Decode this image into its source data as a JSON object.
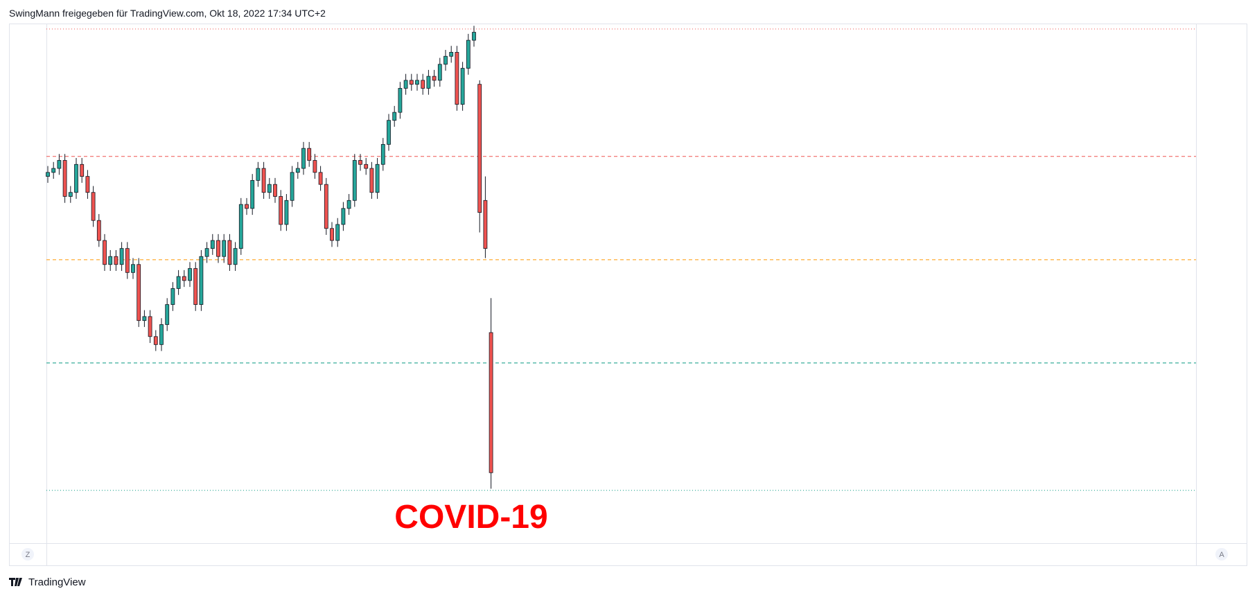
{
  "header": "SwingMann freigegeben für TradingView.com, Okt 18, 2022 17:34 UTC+2",
  "chart_data": {
    "type": "candlestick",
    "annotation": "COVID-19",
    "up_color": "#26a69a",
    "down_color": "#ef5350",
    "ylim": [
      22,
      670
    ],
    "open": [
      480,
      485,
      490,
      500,
      455,
      460,
      495,
      480,
      460,
      425,
      400,
      370,
      380,
      370,
      390,
      360,
      370,
      300,
      305,
      280,
      270,
      295,
      320,
      340,
      355,
      350,
      365,
      320,
      380,
      390,
      400,
      380,
      400,
      370,
      390,
      445,
      440,
      475,
      490,
      460,
      470,
      455,
      420,
      450,
      485,
      490,
      515,
      500,
      485,
      470,
      415,
      400,
      420,
      440,
      450,
      500,
      495,
      490,
      460,
      495,
      520,
      550,
      560,
      590,
      600,
      595,
      600,
      590,
      605,
      600,
      620,
      630,
      635,
      570,
      615,
      650,
      595,
      450,
      285
    ],
    "high": [
      493,
      498,
      508,
      508,
      468,
      503,
      503,
      488,
      468,
      433,
      408,
      388,
      388,
      398,
      398,
      378,
      378,
      313,
      313,
      288,
      303,
      328,
      348,
      363,
      363,
      373,
      373,
      388,
      398,
      408,
      408,
      408,
      408,
      398,
      453,
      453,
      483,
      498,
      498,
      478,
      478,
      463,
      458,
      493,
      498,
      523,
      523,
      508,
      493,
      478,
      423,
      428,
      448,
      458,
      508,
      508,
      503,
      498,
      503,
      528,
      558,
      568,
      598,
      608,
      608,
      608,
      608,
      613,
      613,
      628,
      638,
      643,
      643,
      623,
      658,
      668,
      600,
      480,
      328
    ],
    "low": [
      472,
      477,
      482,
      447,
      447,
      452,
      472,
      452,
      417,
      392,
      362,
      362,
      362,
      362,
      352,
      352,
      292,
      292,
      272,
      262,
      262,
      287,
      312,
      332,
      342,
      342,
      312,
      312,
      372,
      382,
      372,
      372,
      362,
      362,
      382,
      432,
      432,
      467,
      452,
      452,
      447,
      412,
      412,
      442,
      477,
      482,
      492,
      477,
      462,
      407,
      392,
      392,
      412,
      432,
      442,
      487,
      482,
      452,
      452,
      487,
      512,
      542,
      552,
      582,
      587,
      587,
      582,
      582,
      592,
      592,
      612,
      622,
      562,
      562,
      607,
      642,
      410,
      378,
      90
    ],
    "close": [
      485,
      490,
      500,
      455,
      460,
      495,
      480,
      460,
      425,
      400,
      370,
      380,
      370,
      390,
      360,
      370,
      300,
      305,
      280,
      270,
      295,
      320,
      340,
      355,
      350,
      365,
      320,
      380,
      390,
      400,
      380,
      400,
      370,
      390,
      445,
      440,
      475,
      490,
      460,
      470,
      455,
      420,
      450,
      485,
      490,
      515,
      500,
      485,
      470,
      415,
      400,
      420,
      440,
      450,
      500,
      495,
      490,
      460,
      495,
      520,
      550,
      560,
      590,
      600,
      595,
      600,
      590,
      605,
      600,
      620,
      630,
      635,
      570,
      615,
      650,
      660,
      435,
      390,
      110
    ],
    "levels": [
      {
        "value": 664,
        "color": "#ef5350",
        "style": "dotted"
      },
      {
        "value": 505,
        "color": "#ef5350",
        "style": "dashed"
      },
      {
        "value": 376,
        "color": "#ff9800",
        "style": "dashed"
      },
      {
        "value": 247,
        "color": "#089981",
        "style": "dashed"
      },
      {
        "value": 88,
        "color": "#089981",
        "style": "dotted"
      }
    ]
  },
  "scale_buttons": [
    "Z",
    "A"
  ],
  "footer": "TradingView"
}
